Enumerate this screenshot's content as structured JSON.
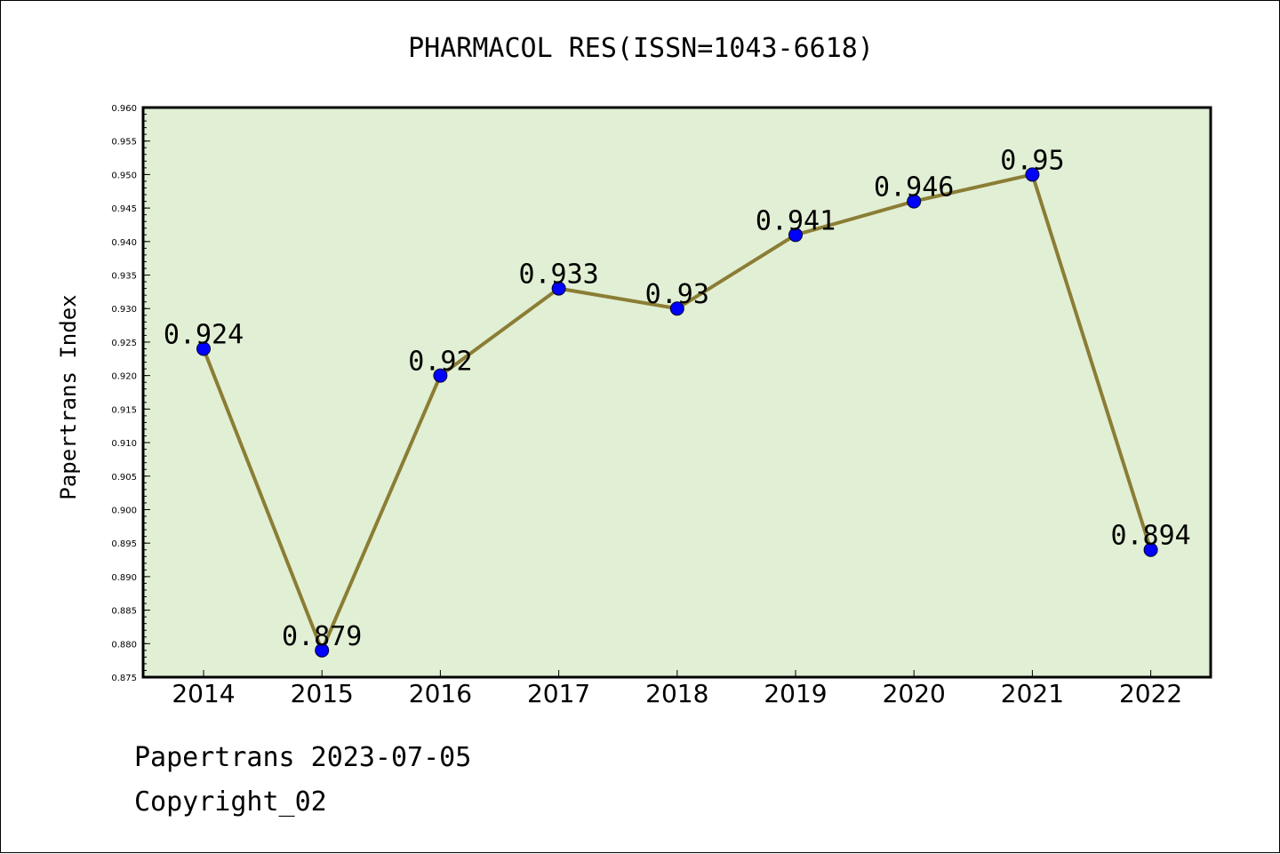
{
  "chart_data": {
    "type": "line",
    "title": "PHARMACOL RES(ISSN=1043-6618)",
    "xlabel": "",
    "ylabel": "Papertrans Index",
    "categories": [
      "2014",
      "2015",
      "2016",
      "2017",
      "2018",
      "2019",
      "2020",
      "2021",
      "2022"
    ],
    "series": [
      {
        "values": [
          0.924,
          0.879,
          0.92,
          0.933,
          0.93,
          0.941,
          0.946,
          0.95,
          0.894
        ],
        "data_labels": [
          "0.924",
          "0.879",
          "0.92",
          "0.933",
          "0.93",
          "0.941",
          "0.946",
          "0.95",
          "0.894"
        ]
      }
    ],
    "ylim": [
      0.875,
      0.96
    ],
    "yticks": [
      0.875,
      0.88,
      0.885,
      0.89,
      0.895,
      0.9,
      0.905,
      0.91,
      0.915,
      0.92,
      0.925,
      0.93,
      0.935,
      0.94,
      0.945,
      0.95,
      0.955,
      0.96
    ],
    "ytick_labels": [
      "0.875",
      "0.880",
      "0.885",
      "0.890",
      "0.895",
      "0.900",
      "0.905",
      "0.910",
      "0.915",
      "0.920",
      "0.925",
      "0.930",
      "0.935",
      "0.940",
      "0.945",
      "0.950",
      "0.955",
      "0.960"
    ],
    "grid": false,
    "legend": "none",
    "colors": {
      "plot_background": "#e1efd4",
      "line": "#8b7d35",
      "marker": "#0000ff",
      "axis": "#000000"
    }
  },
  "footer": {
    "line1": "Papertrans 2023-07-05",
    "line2": "Copyright_02"
  }
}
